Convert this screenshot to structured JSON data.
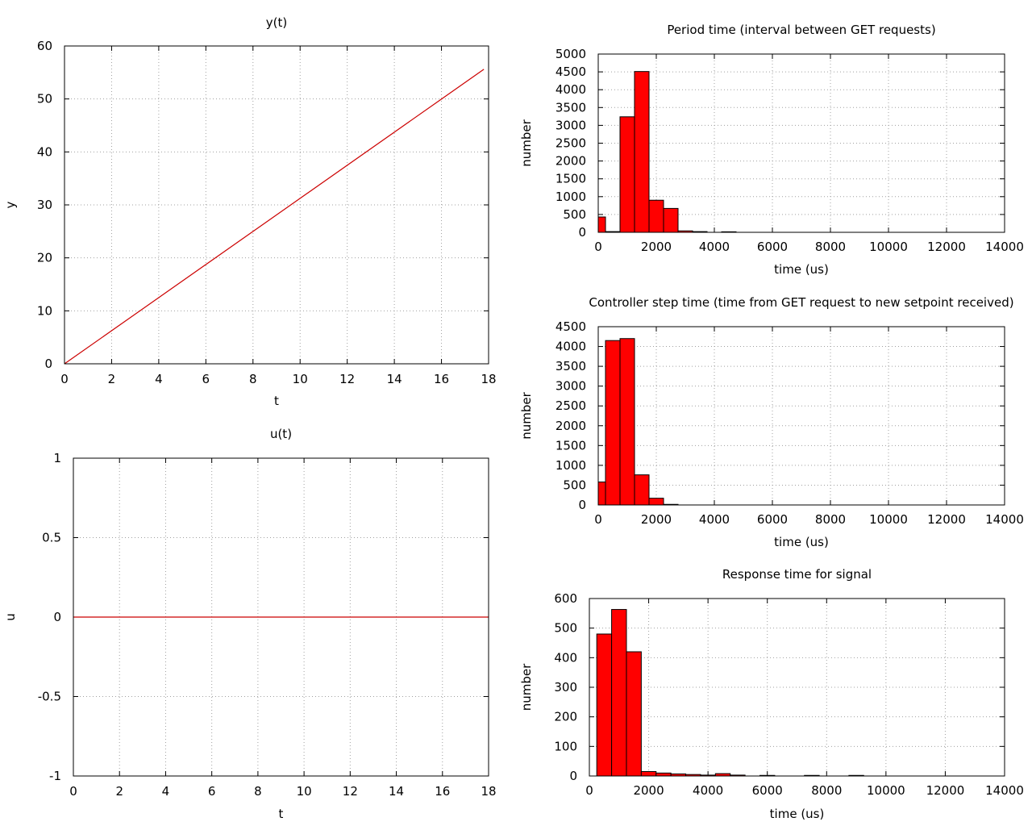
{
  "chart_data": [
    {
      "type": "line",
      "title": "y(t)",
      "xlabel": "t",
      "ylabel": "y",
      "xlim": [
        0,
        18
      ],
      "ylim": [
        0,
        60
      ],
      "xticks": [
        0,
        2,
        4,
        6,
        8,
        10,
        12,
        14,
        16,
        18
      ],
      "yticks": [
        0,
        10,
        20,
        30,
        40,
        50,
        60
      ],
      "xtick_labels": [
        "0",
        "2",
        "4",
        "6",
        "8",
        "10",
        "12",
        "14",
        "16",
        "18"
      ],
      "ytick_labels": [
        "0",
        "10",
        "20",
        "30",
        "40",
        "50",
        "60"
      ],
      "grid": true,
      "line_color": "#cc0000",
      "x": [
        0,
        17.8
      ],
      "y": [
        0,
        55.6
      ]
    },
    {
      "type": "line",
      "title": "u(t)",
      "xlabel": "t",
      "ylabel": "u",
      "xlim": [
        0,
        18
      ],
      "ylim": [
        -1,
        1
      ],
      "xticks": [
        0,
        2,
        4,
        6,
        8,
        10,
        12,
        14,
        16,
        18
      ],
      "yticks": [
        -1,
        -0.5,
        0,
        0.5,
        1
      ],
      "xtick_labels": [
        "0",
        "2",
        "4",
        "6",
        "8",
        "10",
        "12",
        "14",
        "16",
        "18"
      ],
      "ytick_labels": [
        "-1",
        "-0.5",
        "0",
        "0.5",
        "1"
      ],
      "grid": true,
      "line_color": "#cc0000",
      "x": [
        0,
        18
      ],
      "y": [
        0,
        0
      ]
    },
    {
      "type": "bar",
      "title": "Period time (interval between GET requests)",
      "xlabel": "time (us)",
      "ylabel": "number",
      "xlim": [
        0,
        14000
      ],
      "ylim": [
        0,
        5000
      ],
      "xticks": [
        0,
        2000,
        4000,
        6000,
        8000,
        10000,
        12000,
        14000
      ],
      "yticks": [
        0,
        500,
        1000,
        1500,
        2000,
        2500,
        3000,
        3500,
        4000,
        4500,
        5000
      ],
      "xtick_labels": [
        "0",
        "2000",
        "4000",
        "6000",
        "8000",
        "10000",
        "12000",
        "14000"
      ],
      "ytick_labels": [
        "0",
        "500",
        "1000",
        "1500",
        "2000",
        "2500",
        "3000",
        "3500",
        "4000",
        "4500",
        "5000"
      ],
      "grid": true,
      "bar_color": "#ff0000",
      "bin_width": 500,
      "bin_starts": [
        -250,
        250,
        750,
        1250,
        1750,
        2250,
        2750,
        3250,
        4250
      ],
      "values": [
        430,
        20,
        3240,
        4510,
        900,
        670,
        40,
        20,
        15
      ]
    },
    {
      "type": "bar",
      "title": "Controller step time (time from GET request to new setpoint received)",
      "xlabel": "time (us)",
      "ylabel": "number",
      "xlim": [
        0,
        14000
      ],
      "ylim": [
        0,
        4500
      ],
      "xticks": [
        0,
        2000,
        4000,
        6000,
        8000,
        10000,
        12000,
        14000
      ],
      "yticks": [
        0,
        500,
        1000,
        1500,
        2000,
        2500,
        3000,
        3500,
        4000,
        4500
      ],
      "xtick_labels": [
        "0",
        "2000",
        "4000",
        "6000",
        "8000",
        "10000",
        "12000",
        "14000"
      ],
      "ytick_labels": [
        "0",
        "500",
        "1000",
        "1500",
        "2000",
        "2500",
        "3000",
        "3500",
        "4000",
        "4500"
      ],
      "grid": true,
      "bar_color": "#ff0000",
      "bin_width": 500,
      "bin_starts": [
        -250,
        250,
        750,
        1250,
        1750,
        2250
      ],
      "values": [
        580,
        4150,
        4200,
        760,
        170,
        15
      ]
    },
    {
      "type": "bar",
      "title": "Response time for signal",
      "xlabel": "time (us)",
      "ylabel": "number",
      "xlim": [
        0,
        14000
      ],
      "ylim": [
        0,
        600
      ],
      "xticks": [
        0,
        2000,
        4000,
        6000,
        8000,
        10000,
        12000,
        14000
      ],
      "yticks": [
        0,
        100,
        200,
        300,
        400,
        500,
        600
      ],
      "xtick_labels": [
        "0",
        "2000",
        "4000",
        "6000",
        "8000",
        "10000",
        "12000",
        "14000"
      ],
      "ytick_labels": [
        "0",
        "100",
        "200",
        "300",
        "400",
        "500",
        "600"
      ],
      "grid": true,
      "bar_color": "#ff0000",
      "bin_width": 500,
      "bin_starts": [
        250,
        750,
        1250,
        1750,
        2250,
        2750,
        3250,
        3750,
        4250,
        4750,
        5750,
        7250,
        8750
      ],
      "values": [
        480,
        563,
        420,
        15,
        10,
        7,
        5,
        3,
        8,
        3,
        2,
        2,
        2
      ]
    }
  ]
}
